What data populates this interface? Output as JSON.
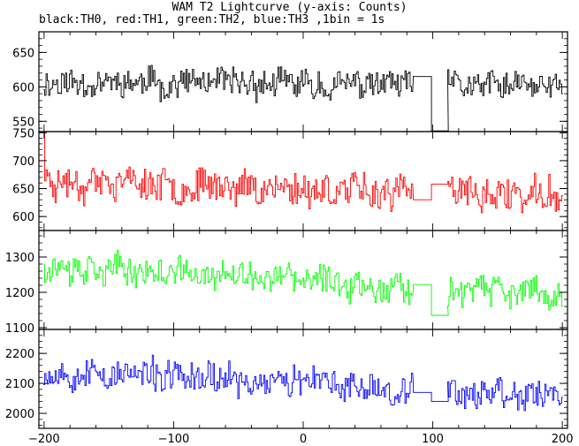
{
  "title": "WAM T2 Lightcurve (y-axis: Counts)",
  "subtitle": "black:TH0, red:TH1, green:TH2, blue:TH3 ,1bin = 1s",
  "chart_data": [
    {
      "type": "line",
      "series": [
        {
          "name": "TH0",
          "color": "#000000"
        }
      ],
      "xlim": [
        -204,
        204
      ],
      "ylim": [
        535,
        680
      ],
      "yticks": [
        550,
        600,
        650
      ],
      "noise": {
        "mean_start": 607,
        "mean_end": 600,
        "amp": 22,
        "seed": 11
      },
      "gap": {
        "x_start": 85,
        "x_end": 112,
        "step_value_1": 615,
        "step_value_2": 536,
        "step_x": 99
      }
    },
    {
      "type": "line",
      "series": [
        {
          "name": "TH1",
          "color": "#ff0000"
        }
      ],
      "xlim": [
        -204,
        204
      ],
      "ylim": [
        575,
        752
      ],
      "yticks": [
        600,
        650,
        700,
        750
      ],
      "noise": {
        "mean_start": 665,
        "mean_end": 635,
        "amp": 32,
        "seed": 23
      },
      "gap": {
        "x_start": 85,
        "x_end": 112,
        "step_value_1": 630,
        "step_value_2": 658,
        "step_x": 99
      },
      "start_spike": 750
    },
    {
      "type": "line",
      "series": [
        {
          "name": "TH2",
          "color": "#00ff00"
        }
      ],
      "xlim": [
        -204,
        204
      ],
      "ylim": [
        1095,
        1375
      ],
      "yticks": [
        1100,
        1200,
        1300
      ],
      "noise": {
        "mean_start": 1275,
        "mean_end": 1190,
        "amp": 45,
        "seed": 37
      },
      "gap": {
        "x_start": 85,
        "x_end": 112,
        "step_value_1": 1222,
        "step_value_2": 1135,
        "step_x": 99
      }
    },
    {
      "type": "line",
      "series": [
        {
          "name": "TH3",
          "color": "#0000ff"
        }
      ],
      "xlim": [
        -204,
        204
      ],
      "ylim": [
        1950,
        2280
      ],
      "yticks": [
        2000,
        2100,
        2200
      ],
      "noise": {
        "mean_start": 2140,
        "mean_end": 2060,
        "amp": 55,
        "seed": 53
      },
      "gap": {
        "x_start": 85,
        "x_end": 112,
        "step_value_1": 2070,
        "step_value_2": 2040,
        "step_x": 99
      }
    }
  ],
  "x_axis": {
    "ticks": [
      -200,
      -100,
      0,
      100,
      200
    ],
    "tick_labels": [
      "−200",
      "−100",
      "0",
      "100",
      "200"
    ]
  }
}
